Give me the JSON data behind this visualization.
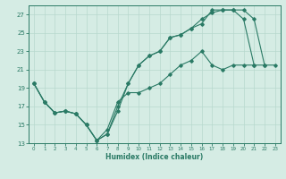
{
  "xlabel": "Humidex (Indice chaleur)",
  "background_color": "#d5ece4",
  "grid_color": "#b8d8ce",
  "line_color": "#2a7a65",
  "xlim": [
    -0.5,
    23.5
  ],
  "ylim": [
    13,
    28
  ],
  "xticks": [
    0,
    1,
    2,
    3,
    4,
    5,
    6,
    7,
    8,
    9,
    10,
    11,
    12,
    13,
    14,
    15,
    16,
    17,
    18,
    19,
    20,
    21,
    22,
    23
  ],
  "yticks": [
    13,
    15,
    17,
    19,
    21,
    23,
    25,
    27
  ],
  "line1_x": [
    0,
    1,
    2,
    3,
    4,
    5,
    6,
    7,
    8,
    9,
    10,
    11,
    12,
    13,
    14,
    15,
    16,
    17,
    18,
    19,
    20,
    21
  ],
  "line1_y": [
    19.5,
    17.5,
    16.3,
    16.5,
    16.2,
    15.0,
    13.3,
    14.0,
    16.5,
    19.5,
    21.5,
    22.5,
    23.0,
    24.5,
    24.8,
    25.5,
    26.0,
    27.5,
    27.5,
    27.5,
    26.5,
    21.5
  ],
  "line2_x": [
    0,
    1,
    2,
    3,
    4,
    5,
    6,
    7,
    8,
    9,
    10,
    11,
    12,
    13,
    14,
    15,
    16,
    17,
    18,
    19,
    20,
    21,
    22
  ],
  "line2_y": [
    19.5,
    17.5,
    16.3,
    16.5,
    16.2,
    15.0,
    13.3,
    14.0,
    17.0,
    19.5,
    21.5,
    22.5,
    23.0,
    24.5,
    24.8,
    25.5,
    26.5,
    27.2,
    27.5,
    27.5,
    27.5,
    26.5,
    21.5
  ],
  "line3_x": [
    0,
    1,
    2,
    3,
    4,
    5,
    6,
    7,
    8,
    9,
    10,
    11,
    12,
    13,
    14,
    15,
    16,
    17,
    18,
    19,
    20,
    21,
    22,
    23
  ],
  "line3_y": [
    19.5,
    17.5,
    16.3,
    16.5,
    16.2,
    15.0,
    13.3,
    14.5,
    17.5,
    18.5,
    18.5,
    19.0,
    19.5,
    20.5,
    21.5,
    22.0,
    23.0,
    21.5,
    21.0,
    21.5,
    21.5,
    21.5,
    21.5,
    21.5
  ]
}
